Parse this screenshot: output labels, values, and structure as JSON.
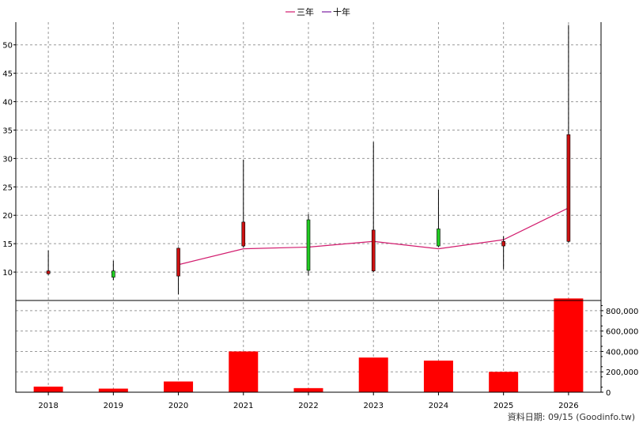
{
  "legend": [
    {
      "name": "三年",
      "color": "#d21c6e"
    },
    {
      "name": "十年",
      "color": "#7b1fa2"
    }
  ],
  "credit": "資料日期: 09/15  (Goodinfo.tw)",
  "chart_data": [
    {
      "type": "candlestick",
      "x": [
        "2018",
        "2019",
        "2020",
        "2021",
        "2022",
        "2023",
        "2024",
        "2025",
        "2026"
      ],
      "ylim": [
        5,
        54
      ],
      "yticks": [
        10,
        15,
        20,
        25,
        30,
        35,
        40,
        45,
        50
      ],
      "grid": true,
      "candles": [
        {
          "x": "2018",
          "open": 10.2,
          "close": 9.7,
          "high": 13.8,
          "low": 9.5,
          "color": "#cc1111"
        },
        {
          "x": "2019",
          "open": 9.1,
          "close": 10.2,
          "high": 12.0,
          "low": 8.6,
          "color": "#22cc22"
        },
        {
          "x": "2020",
          "open": 14.2,
          "close": 9.3,
          "high": 14.3,
          "low": 6.1,
          "color": "#cc1111"
        },
        {
          "x": "2021",
          "open": 18.8,
          "close": 14.6,
          "high": 29.8,
          "low": 14.3,
          "color": "#cc1111"
        },
        {
          "x": "2022",
          "open": 10.3,
          "close": 19.2,
          "high": 20.2,
          "low": 9.4,
          "color": "#22cc22"
        },
        {
          "x": "2023",
          "open": 17.4,
          "close": 10.2,
          "high": 32.9,
          "low": 10.0,
          "color": "#cc1111"
        },
        {
          "x": "2024",
          "open": 14.6,
          "close": 17.6,
          "high": 24.5,
          "low": 14.4,
          "color": "#22cc22"
        },
        {
          "x": "2025",
          "open": 15.4,
          "close": 14.6,
          "high": 16.3,
          "low": 10.5,
          "color": "#cc1111"
        },
        {
          "x": "2026",
          "open": 34.2,
          "close": 15.4,
          "high": 53.5,
          "low": 15.2,
          "color": "#cc1111"
        }
      ],
      "series": [
        {
          "name": "三年",
          "color": "#d21c6e",
          "points": [
            [
              "2020",
              11.3
            ],
            [
              "2021",
              14.1
            ],
            [
              "2022",
              14.4
            ],
            [
              "2023",
              15.4
            ],
            [
              "2024",
              14.1
            ],
            [
              "2025",
              15.7
            ],
            [
              "2026",
              21.3
            ]
          ]
        }
      ]
    },
    {
      "type": "bar",
      "categories": [
        "2018",
        "2019",
        "2020",
        "2021",
        "2022",
        "2023",
        "2024",
        "2025",
        "2026"
      ],
      "values": [
        55000,
        35000,
        105000,
        400000,
        40000,
        340000,
        310000,
        200000,
        920000
      ],
      "ylim": [
        0,
        900000
      ],
      "yticks": [
        "0",
        "200,000",
        "400,000",
        "600,000",
        "800,000"
      ],
      "color": "#ff0000",
      "grid": true
    }
  ]
}
